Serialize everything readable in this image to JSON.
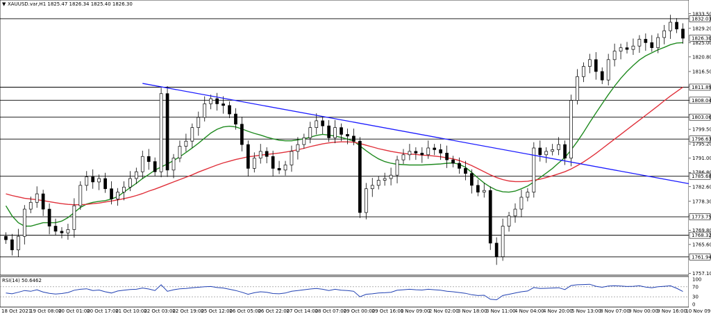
{
  "window": {
    "symbol_line": "XAUUSD.var,H1  1825.47 1826.34 1825.40 1826.30",
    "menu_icon": "triangle-down-icon"
  },
  "indicator": {
    "label": "RSI(14) 50.6462",
    "ticks": [
      "100",
      "70",
      "30",
      "0"
    ]
  },
  "chart_data": [
    {
      "type": "line",
      "name": "price",
      "ylim": [
        1757.0,
        1835.5
      ],
      "y_ticks": [
        1833.5,
        1829.2,
        1825.0,
        1820.8,
        1816.5,
        1812.2,
        1808.0,
        1803.7,
        1799.5,
        1795.2,
        1791.0,
        1786.8,
        1782.6,
        1778.3,
        1774.0,
        1769.8,
        1765.6,
        1761.3,
        1757.1
      ],
      "y_tick_labels": [
        "1833.50",
        "1829.20",
        "1825.00",
        "1820.80",
        "1816.50",
        "",
        "",
        "",
        "1799.50",
        "1795.20",
        "1791.00",
        "1786.80",
        "1782.60",
        "1778.30",
        "",
        "1769.80",
        "1765.60",
        "",
        "1757.10"
      ],
      "x_ticks": [
        "18 Oct 2021",
        "19 Oct 08:00",
        "20 Oct 01:00",
        "20 Oct 17:00",
        "21 Oct 10:00",
        "22 Oct 03:00",
        "22 Oct 19:00",
        "25 Oct 12:00",
        "26 Oct 05:00",
        "26 Oct 22:00",
        "27 Oct 14:00",
        "28 Oct 07:00",
        "29 Oct 00:00",
        "29 Oct 16:00",
        "1 Nov 09:00",
        "2 Nov 02:00",
        "3 Nov 18:00",
        "3 Nov 11:00",
        "4 Nov 04:00",
        "4 Nov 20:00",
        "5 Nov 13:00",
        "8 Nov 07:00",
        "9 Nov 00:00",
        "9 Nov 16:00",
        "10 Nov 09:00"
      ],
      "horizontal_levels": [
        1832.03,
        1811.89,
        1808.04,
        1803.06,
        1796.63,
        1785.68,
        1773.75,
        1768.32,
        1761.94
      ],
      "current_price": 1826.3,
      "close": [
        1767.0,
        1764.0,
        1768.0,
        1776.0,
        1778.0,
        1780.5,
        1776.0,
        1771.0,
        1769.5,
        1769.0,
        1770.0,
        1777.0,
        1783.0,
        1785.5,
        1784.0,
        1785.0,
        1782.0,
        1779.0,
        1781.0,
        1782.5,
        1785.0,
        1787.0,
        1791.5,
        1790.0,
        1787.0,
        1810.0,
        1787.5,
        1791.0,
        1794.5,
        1796.0,
        1800.0,
        1803.0,
        1807.0,
        1808.5,
        1807.0,
        1806.5,
        1804.0,
        1801.0,
        1795.0,
        1788.0,
        1791.0,
        1793.0,
        1791.5,
        1788.0,
        1787.5,
        1789.0,
        1793.0,
        1795.0,
        1797.0,
        1800.0,
        1802.0,
        1800.5,
        1797.0,
        1800.0,
        1798.0,
        1797.5,
        1796.0,
        1775.0,
        1782.0,
        1783.0,
        1784.5,
        1785.0,
        1786.0,
        1790.5,
        1792.0,
        1793.0,
        1792.5,
        1792.0,
        1794.0,
        1793.5,
        1792.5,
        1790.5,
        1789.5,
        1788.0,
        1786.5,
        1783.0,
        1781.0,
        1781.5,
        1766.0,
        1762.0,
        1771.0,
        1774.0,
        1776.0,
        1779.5,
        1781.0,
        1794.0,
        1792.0,
        1793.0,
        1793.5,
        1795.0,
        1791.0,
        1808.0,
        1815.0,
        1818.0,
        1820.0,
        1816.5,
        1814.0,
        1820.0,
        1822.5,
        1823.5,
        1823.0,
        1824.0,
        1826.0,
        1825.0,
        1823.5,
        1826.5,
        1828.5,
        1831.0,
        1829.0,
        1826.3
      ],
      "ma_green": [
        1777.0,
        1774.0,
        1772.0,
        1771.0,
        1771.0,
        1771.5,
        1772.0,
        1772.0,
        1772.0,
        1772.5,
        1773.5,
        1775.0,
        1776.5,
        1777.5,
        1778.0,
        1778.3,
        1778.5,
        1779.0,
        1779.7,
        1781.0,
        1782.3,
        1783.6,
        1785.0,
        1786.2,
        1787.5,
        1788.4,
        1789.3,
        1790.3,
        1791.4,
        1792.7,
        1794.0,
        1795.4,
        1796.9,
        1798.4,
        1799.5,
        1800.2,
        1800.4,
        1800.2,
        1799.6,
        1798.9,
        1798.3,
        1797.8,
        1797.2,
        1796.7,
        1796.3,
        1796.1,
        1796.1,
        1796.4,
        1796.7,
        1797.2,
        1797.7,
        1798.0,
        1797.8,
        1797.5,
        1797.1,
        1796.6,
        1796.0,
        1794.6,
        1793.2,
        1791.9,
        1790.8,
        1790.0,
        1789.5,
        1789.2,
        1789.1,
        1789.0,
        1789.0,
        1789.0,
        1789.1,
        1789.2,
        1789.3,
        1789.5,
        1789.6,
        1789.2,
        1788.3,
        1786.8,
        1785.2,
        1783.7,
        1782.5,
        1781.6,
        1781.1,
        1781.0,
        1781.3,
        1782.0,
        1782.8,
        1784.0,
        1785.3,
        1786.6,
        1788.0,
        1789.6,
        1791.2,
        1793.4,
        1795.9,
        1798.6,
        1801.5,
        1804.3,
        1807.0,
        1809.7,
        1812.2,
        1814.5,
        1816.5,
        1818.3,
        1819.9,
        1821.1,
        1822.0,
        1822.9,
        1823.6,
        1824.4,
        1824.9,
        1825.0
      ],
      "ma_red": [
        1780.5,
        1780.0,
        1779.6,
        1779.2,
        1779.0,
        1778.8,
        1778.5,
        1778.2,
        1777.9,
        1777.6,
        1777.4,
        1777.3,
        1777.3,
        1777.4,
        1777.6,
        1777.8,
        1778.1,
        1778.4,
        1778.7,
        1779.1,
        1779.5,
        1780.0,
        1780.6,
        1781.3,
        1781.9,
        1782.6,
        1783.3,
        1784.0,
        1784.7,
        1785.4,
        1786.1,
        1786.9,
        1787.6,
        1788.3,
        1789.0,
        1789.6,
        1790.1,
        1790.6,
        1791.0,
        1791.4,
        1791.6,
        1791.9,
        1792.1,
        1792.3,
        1792.5,
        1792.8,
        1793.1,
        1793.5,
        1793.9,
        1794.4,
        1794.8,
        1795.2,
        1795.5,
        1795.7,
        1795.8,
        1795.8,
        1795.7,
        1795.3,
        1794.8,
        1794.3,
        1793.8,
        1793.4,
        1793.0,
        1792.7,
        1792.4,
        1792.2,
        1792.1,
        1791.9,
        1791.8,
        1791.6,
        1791.4,
        1791.1,
        1790.8,
        1790.3,
        1789.6,
        1788.8,
        1787.9,
        1787.0,
        1786.1,
        1785.3,
        1784.7,
        1784.3,
        1784.1,
        1784.1,
        1784.2,
        1784.5,
        1784.8,
        1785.3,
        1785.8,
        1786.4,
        1787.0,
        1787.8,
        1788.8,
        1789.9,
        1791.1,
        1792.4,
        1793.8,
        1795.2,
        1796.6,
        1798.0,
        1799.4,
        1800.8,
        1802.2,
        1803.6,
        1805.0,
        1806.4,
        1807.9,
        1809.3,
        1810.6,
        1811.9
      ],
      "trendline": {
        "start": 1813.0,
        "end": 1783.5
      },
      "colors": {
        "candle": "#000000",
        "ma_green": "#1f8a1f",
        "ma_red": "#e0303a",
        "trendline": "#1a1aff",
        "levels": "#000000",
        "grid": "#ffffff"
      }
    },
    {
      "type": "line",
      "name": "rsi",
      "ylim": [
        0,
        100
      ],
      "levels": [
        70,
        30
      ],
      "values": [
        45,
        42,
        48,
        55,
        52,
        58,
        49,
        44,
        41,
        43,
        47,
        56,
        60,
        62,
        55,
        57,
        50,
        45,
        53,
        56,
        59,
        60,
        65,
        61,
        55,
        78,
        52,
        58,
        62,
        63,
        66,
        68,
        70,
        71,
        67,
        65,
        60,
        55,
        48,
        40,
        46,
        50,
        48,
        43,
        42,
        45,
        52,
        55,
        58,
        61,
        63,
        60,
        55,
        60,
        56,
        55,
        52,
        30,
        40,
        42,
        45,
        46,
        48,
        56,
        58,
        60,
        58,
        57,
        60,
        58,
        56,
        52,
        50,
        47,
        44,
        38,
        35,
        36,
        20,
        18,
        35,
        40,
        45,
        50,
        53,
        67,
        63,
        64,
        65,
        66,
        59,
        75,
        78,
        79,
        80,
        72,
        68,
        73,
        74,
        73,
        71,
        72,
        74,
        69,
        66,
        70,
        72,
        74,
        64,
        51
      ],
      "colors": {
        "line": "#1f3fb2",
        "levels": "#808080"
      }
    }
  ]
}
